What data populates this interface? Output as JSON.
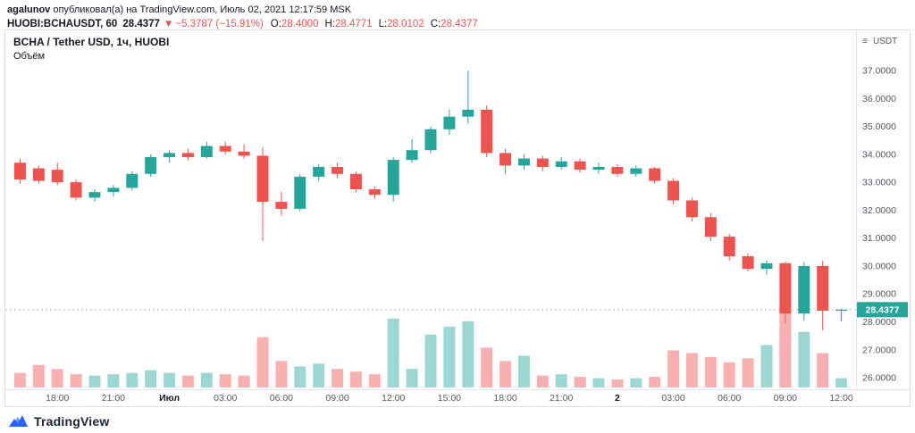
{
  "header": {
    "author": "agalunov",
    "published_text": " опубликовал(а) на TradingView.com, Июль 02, 2021 12:17:59 MSK",
    "symbol": "HUOBI:BCHAUSDT, 60",
    "last_price": "28.4377",
    "change_arrow": "▼",
    "change": "−5.3787 (−15.91%)",
    "ohlc": {
      "o_label": "O:",
      "o_value": "28.4000",
      "h_label": "H:",
      "h_value": "28.4771",
      "l_label": "L:",
      "l_value": "28.0102",
      "c_label": "C:",
      "c_value": "28.4377"
    }
  },
  "legend": {
    "title": "BCHA / Tether USD, 1ч, HUOBI",
    "volume_label": "Объём"
  },
  "price_scale": {
    "menu_icon": "≡",
    "currency": "USDT",
    "last_price_badge": "28.4377"
  },
  "footer": {
    "brand": "TradingView"
  },
  "colors": {
    "up": "#26a69a",
    "down": "#ef5350",
    "volume_up": "rgba(38,166,154,0.45)",
    "volume_down": "rgba(239,83,80,0.45)",
    "badge_bg": "#26a69a",
    "badge_text": "#ffffff",
    "axis_text": "#53575e",
    "major_text": "#131722",
    "frame": "#e0e3eb",
    "price_line": "#b9bec7",
    "header_red": "#ef5350",
    "brand_blue": "#2962ff"
  },
  "chart_data": {
    "type": "candlestick",
    "symbol": "HUOBI:BCHAUSDT",
    "interval_minutes": 60,
    "quote_currency": "USDT",
    "last_price": 28.4377,
    "view": {
      "price_top": 38.25,
      "price_bottom": 25.65,
      "volume_max": 3.2
    },
    "price_ticks": [
      37,
      36,
      35,
      34,
      33,
      32,
      31,
      30,
      29,
      28,
      27,
      26
    ],
    "time_ticks": [
      {
        "i": 2,
        "label": "18:00",
        "major": false
      },
      {
        "i": 5,
        "label": "21:00",
        "major": false
      },
      {
        "i": 8,
        "label": "Июл",
        "major": true
      },
      {
        "i": 11,
        "label": "03:00",
        "major": false
      },
      {
        "i": 14,
        "label": "06:00",
        "major": false
      },
      {
        "i": 17,
        "label": "09:00",
        "major": false
      },
      {
        "i": 20,
        "label": "12:00",
        "major": false
      },
      {
        "i": 23,
        "label": "15:00",
        "major": false
      },
      {
        "i": 26,
        "label": "18:00",
        "major": false
      },
      {
        "i": 29,
        "label": "21:00",
        "major": false
      },
      {
        "i": 32,
        "label": "2",
        "major": true
      },
      {
        "i": 35,
        "label": "03:00",
        "major": false
      },
      {
        "i": 38,
        "label": "06:00",
        "major": false
      },
      {
        "i": 41,
        "label": "09:00",
        "major": false
      },
      {
        "i": 44,
        "label": "12:00",
        "major": false
      }
    ],
    "candles": [
      {
        "t": "16:00",
        "o": 33.7,
        "h": 33.85,
        "l": 32.95,
        "c": 33.1,
        "v": 0.55
      },
      {
        "t": "17:00",
        "o": 33.5,
        "h": 33.6,
        "l": 32.95,
        "c": 33.05,
        "v": 0.85
      },
      {
        "t": "18:00",
        "o": 33.45,
        "h": 33.7,
        "l": 32.9,
        "c": 33.0,
        "v": 0.7
      },
      {
        "t": "19:00",
        "o": 33.0,
        "h": 33.1,
        "l": 32.35,
        "c": 32.45,
        "v": 0.5
      },
      {
        "t": "20:00",
        "o": 32.45,
        "h": 32.75,
        "l": 32.3,
        "c": 32.65,
        "v": 0.45
      },
      {
        "t": "21:00",
        "o": 32.65,
        "h": 32.9,
        "l": 32.5,
        "c": 32.8,
        "v": 0.5
      },
      {
        "t": "22:00",
        "o": 32.8,
        "h": 33.4,
        "l": 32.7,
        "c": 33.3,
        "v": 0.55
      },
      {
        "t": "23:00",
        "o": 33.3,
        "h": 34.0,
        "l": 33.2,
        "c": 33.9,
        "v": 0.65
      },
      {
        "t": "00:00",
        "o": 33.9,
        "h": 34.15,
        "l": 33.7,
        "c": 34.05,
        "v": 0.55
      },
      {
        "t": "01:00",
        "o": 34.05,
        "h": 34.2,
        "l": 33.8,
        "c": 33.9,
        "v": 0.45
      },
      {
        "t": "02:00",
        "o": 33.9,
        "h": 34.45,
        "l": 33.85,
        "c": 34.3,
        "v": 0.55
      },
      {
        "t": "03:00",
        "o": 34.3,
        "h": 34.45,
        "l": 34.0,
        "c": 34.1,
        "v": 0.5
      },
      {
        "t": "04:00",
        "o": 34.1,
        "h": 34.35,
        "l": 33.85,
        "c": 33.95,
        "v": 0.45
      },
      {
        "t": "05:00",
        "o": 33.95,
        "h": 34.25,
        "l": 30.9,
        "c": 32.3,
        "v": 1.9
      },
      {
        "t": "06:00",
        "o": 32.3,
        "h": 32.65,
        "l": 31.8,
        "c": 32.05,
        "v": 1.0
      },
      {
        "t": "07:00",
        "o": 32.05,
        "h": 33.3,
        "l": 31.95,
        "c": 33.2,
        "v": 0.8
      },
      {
        "t": "08:00",
        "o": 33.2,
        "h": 33.65,
        "l": 33.05,
        "c": 33.55,
        "v": 0.9
      },
      {
        "t": "09:00",
        "o": 33.55,
        "h": 33.7,
        "l": 33.15,
        "c": 33.3,
        "v": 0.7
      },
      {
        "t": "10:00",
        "o": 33.3,
        "h": 33.4,
        "l": 32.65,
        "c": 32.75,
        "v": 0.6
      },
      {
        "t": "11:00",
        "o": 32.75,
        "h": 32.85,
        "l": 32.4,
        "c": 32.55,
        "v": 0.5
      },
      {
        "t": "12:00",
        "o": 32.55,
        "h": 33.9,
        "l": 32.3,
        "c": 33.8,
        "v": 2.6
      },
      {
        "t": "13:00",
        "o": 33.8,
        "h": 34.55,
        "l": 33.7,
        "c": 34.15,
        "v": 0.7
      },
      {
        "t": "14:00",
        "o": 34.15,
        "h": 35.0,
        "l": 34.05,
        "c": 34.9,
        "v": 2.0
      },
      {
        "t": "15:00",
        "o": 34.9,
        "h": 35.6,
        "l": 34.7,
        "c": 35.35,
        "v": 2.3
      },
      {
        "t": "16:00",
        "o": 35.35,
        "h": 37.0,
        "l": 35.1,
        "c": 35.6,
        "v": 2.5
      },
      {
        "t": "17:00",
        "o": 35.6,
        "h": 35.75,
        "l": 33.9,
        "c": 34.05,
        "v": 1.5
      },
      {
        "t": "18:00",
        "o": 34.05,
        "h": 34.2,
        "l": 33.3,
        "c": 33.6,
        "v": 1.0
      },
      {
        "t": "19:00",
        "o": 33.6,
        "h": 34.0,
        "l": 33.45,
        "c": 33.85,
        "v": 1.2
      },
      {
        "t": "20:00",
        "o": 33.85,
        "h": 33.95,
        "l": 33.4,
        "c": 33.55,
        "v": 0.45
      },
      {
        "t": "21:00",
        "o": 33.55,
        "h": 33.9,
        "l": 33.45,
        "c": 33.75,
        "v": 0.5
      },
      {
        "t": "22:00",
        "o": 33.75,
        "h": 33.85,
        "l": 33.35,
        "c": 33.45,
        "v": 0.4
      },
      {
        "t": "23:00",
        "o": 33.45,
        "h": 33.7,
        "l": 33.3,
        "c": 33.55,
        "v": 0.35
      },
      {
        "t": "00:00",
        "o": 33.55,
        "h": 33.65,
        "l": 33.2,
        "c": 33.3,
        "v": 0.3
      },
      {
        "t": "01:00",
        "o": 33.3,
        "h": 33.6,
        "l": 33.2,
        "c": 33.5,
        "v": 0.35
      },
      {
        "t": "02:00",
        "o": 33.5,
        "h": 33.55,
        "l": 32.95,
        "c": 33.05,
        "v": 0.4
      },
      {
        "t": "03:00",
        "o": 33.05,
        "h": 33.15,
        "l": 32.2,
        "c": 32.35,
        "v": 1.4
      },
      {
        "t": "04:00",
        "o": 32.35,
        "h": 32.45,
        "l": 31.6,
        "c": 31.75,
        "v": 1.3
      },
      {
        "t": "05:00",
        "o": 31.75,
        "h": 31.9,
        "l": 30.9,
        "c": 31.05,
        "v": 1.15
      },
      {
        "t": "06:00",
        "o": 31.05,
        "h": 31.15,
        "l": 30.2,
        "c": 30.35,
        "v": 0.95
      },
      {
        "t": "07:00",
        "o": 30.35,
        "h": 30.45,
        "l": 29.8,
        "c": 29.9,
        "v": 1.1
      },
      {
        "t": "08:00",
        "o": 29.9,
        "h": 30.2,
        "l": 29.7,
        "c": 30.1,
        "v": 1.6
      },
      {
        "t": "09:00",
        "o": 30.1,
        "h": 30.15,
        "l": 27.95,
        "c": 28.3,
        "v": 3.0
      },
      {
        "t": "10:00",
        "o": 28.3,
        "h": 30.15,
        "l": 28.05,
        "c": 30.0,
        "v": 2.1
      },
      {
        "t": "11:00",
        "o": 30.0,
        "h": 30.2,
        "l": 27.7,
        "c": 28.4,
        "v": 1.3
      },
      {
        "t": "12:00",
        "o": 28.4,
        "h": 28.4771,
        "l": 28.0102,
        "c": 28.4377,
        "v": 0.35
      }
    ]
  }
}
